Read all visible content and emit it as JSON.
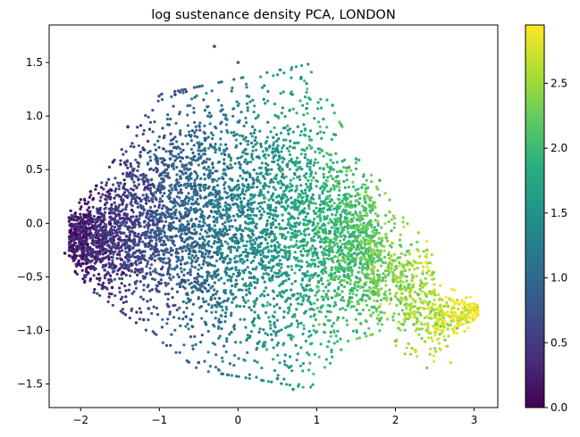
{
  "chart_data": {
    "type": "scatter",
    "title": "log sustenance density PCA, LONDON",
    "xlabel": "",
    "ylabel": "",
    "xlim": [
      -2.4,
      3.3
    ],
    "ylim": [
      -1.72,
      1.85
    ],
    "xticks": [
      -2,
      -1,
      0,
      1,
      2,
      3
    ],
    "xtick_labels": [
      "−2",
      "−1",
      "0",
      "1",
      "2",
      "3"
    ],
    "yticks": [
      -1.5,
      -1.0,
      -0.5,
      0.0,
      0.5,
      1.0,
      1.5
    ],
    "ytick_labels": [
      "−1.5",
      "−1.0",
      "−0.5",
      "0.0",
      "0.5",
      "1.0",
      "1.5"
    ],
    "colorbar": {
      "label": "",
      "colormap": "viridis",
      "range": [
        0.0,
        2.95
      ],
      "ticks": [
        0.0,
        0.5,
        1.0,
        1.5,
        2.0,
        2.5
      ],
      "tick_labels": [
        "0.0",
        "0.5",
        "1.0",
        "1.5",
        "2.0",
        "2.5"
      ]
    },
    "grid": false,
    "legend": "none",
    "point_cloud_description": {
      "color_value_trend": "increases left to right along x, from ~0.1 at x≈-2 to ~2.9 at x≈3",
      "approx_extent_x": [
        -2.2,
        3.05
      ],
      "approx_extent_y": [
        -1.58,
        1.72
      ]
    },
    "points": [
      {
        "x": -2.2,
        "y": -0.28,
        "c": 0.05
      },
      {
        "x": -1.8,
        "y": 0.35,
        "c": 0.15
      },
      {
        "x": -1.6,
        "y": -0.6,
        "c": 0.2
      },
      {
        "x": -1.4,
        "y": 0.9,
        "c": 0.3
      },
      {
        "x": -1.2,
        "y": -0.9,
        "c": 0.45
      },
      {
        "x": -0.8,
        "y": 1.2,
        "c": 0.5
      },
      {
        "x": -0.5,
        "y": -1.3,
        "c": 0.8
      },
      {
        "x": -0.3,
        "y": 1.65,
        "c": 0.4
      },
      {
        "x": 0.0,
        "y": 1.5,
        "c": 1.0
      },
      {
        "x": 0.5,
        "y": -1.45,
        "c": 1.3
      },
      {
        "x": 0.7,
        "y": -1.55,
        "c": 1.45
      },
      {
        "x": 0.8,
        "y": 1.35,
        "c": 1.5
      },
      {
        "x": 1.2,
        "y": 1.1,
        "c": 1.7
      },
      {
        "x": 1.5,
        "y": 0.6,
        "c": 1.9
      },
      {
        "x": 1.8,
        "y": 0.4,
        "c": 2.0
      },
      {
        "x": 2.2,
        "y": -0.2,
        "c": 2.3
      },
      {
        "x": 2.4,
        "y": -0.25,
        "c": 2.4
      },
      {
        "x": 2.0,
        "y": -1.1,
        "c": 2.3
      },
      {
        "x": 2.7,
        "y": -1.3,
        "c": 2.75
      },
      {
        "x": 3.0,
        "y": -0.75,
        "c": 2.9
      }
    ]
  }
}
